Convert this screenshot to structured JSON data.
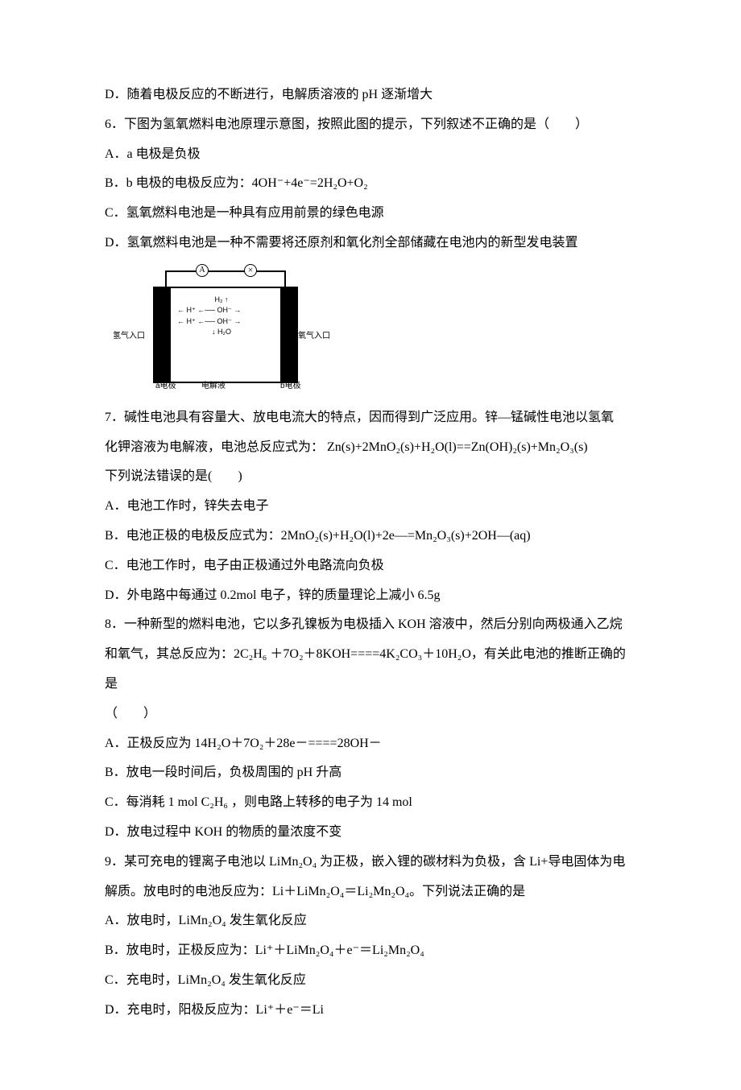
{
  "q5_d": "D．随着电极反应的不断进行，电解质溶液的 pH 逐渐增大",
  "q6": {
    "stem": "6．下图为氢氧燃料电池原理示意图，按照此图的提示，下列叙述不正确的是（　　）",
    "a": "A．a 电极是负极",
    "b": "B．b 电极的电极反应为：4OH⁻+4e⁻=2H₂O+O₂",
    "c": "C．氢氧燃料电池是一种具有应用前景的绿色电源",
    "d": "D．氢氧燃料电池是一种不需要将还原剂和氧化剂全部储藏在电池内的新型发电装置"
  },
  "diagram": {
    "left_label": "氢气入口",
    "right_label": "氧气入口",
    "a_label": "a电极",
    "b_label": "b电极",
    "electrolyte": "电解液",
    "h2_gas": "H₂ ↑",
    "row1": "← H⁺ ←── OH⁻ →",
    "row2": "← H⁺ ←── OH⁻ →",
    "h2o": "↓ H₂O"
  },
  "q7": {
    "stem1": "7．碱性电池具有容量大、放电电流大的特点，因而得到广泛应用。锌—锰碱性电池以氢氧",
    "stem2": "化钾溶液为电解液，电池总反应式为：  Zn(s)+2MnO₂(s)+H₂O(l)==Zn(OH)₂(s)+Mn₂O₃(s)",
    "stem3": "下列说法错误的是(　　)",
    "a": "A．电池工作时，锌失去电子",
    "b": "B．电池正极的电极反应式为：2MnO₂(s)+H₂O(l)+2e—=Mn₂O₃(s)+2OH—(aq)",
    "c": "C．电池工作时，电子由正极通过外电路流向负极",
    "d": "D．外电路中每通过 0.2mol 电子，锌的质量理论上减小 6.5g"
  },
  "q8": {
    "stem1": "8．一种新型的燃料电池，它以多孔镍板为电极插入 KOH 溶液中，然后分别向两极通入乙烷",
    "stem2": "和氧气，其总反应为：2C₂H₆ ＋7O₂＋8KOH====4K₂CO₃＋10H₂O，有关此电池的推断正确的是",
    "stem3": "（　　）",
    "a": "A．正极反应为 14H₂O＋7O₂＋28e－====28OH－",
    "b": "B．放电一段时间后，负极周围的 pH 升高",
    "c": "C．每消耗 1 mol C₂H₆ ，则电路上转移的电子为 14 mol",
    "d": "D．放电过程中 KOH 的物质的量浓度不变"
  },
  "q9": {
    "stem1": "9．某可充电的锂离子电池以 LiMn₂O₄ 为正极，嵌入锂的碳材料为负极，含 Li+导电固体为电",
    "stem2": "解质。放电时的电池反应为：Li＋LiMn₂O₄＝Li₂Mn₂O₄。下列说法正确的是",
    "a": "A．放电时，LiMn₂O₄ 发生氧化反应",
    "b": "B．放电时，正极反应为：Li⁺＋LiMn₂O₄＋e⁻＝Li₂Mn₂O₄",
    "c": "C．充电时，LiMn₂O₄ 发生氧化反应",
    "d": "D．充电时，阳极反应为：Li⁺＋e⁻＝Li"
  }
}
